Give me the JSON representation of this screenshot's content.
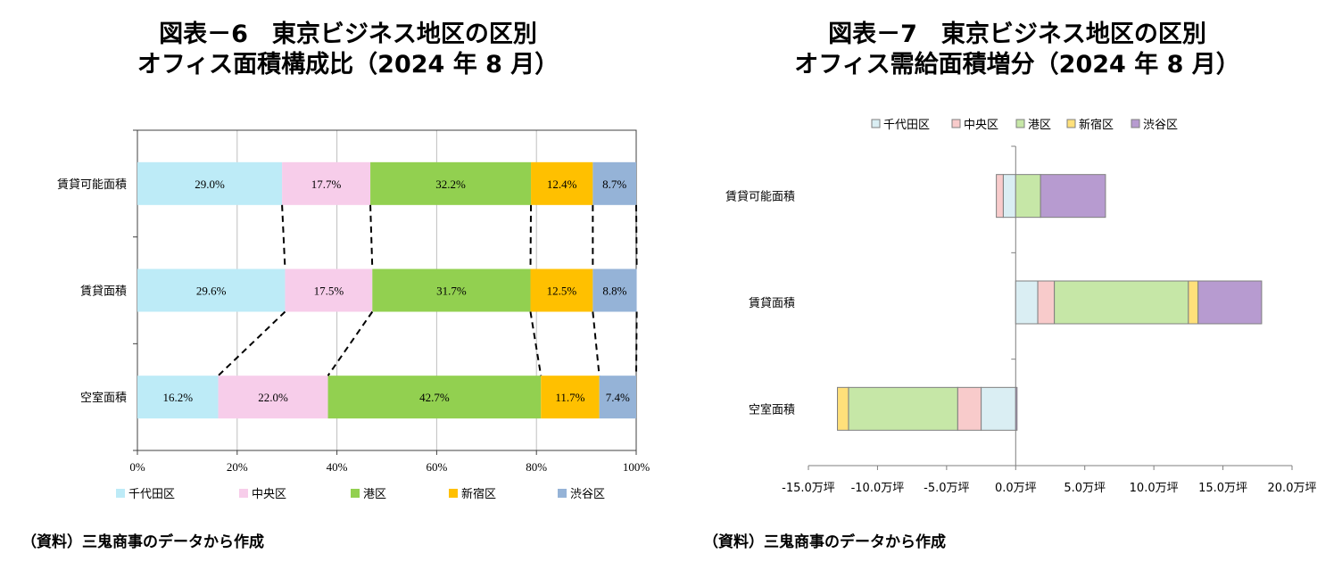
{
  "left": {
    "title_line1": "図表－6　東京ビジネス地区の区別",
    "title_line2": "オフィス面積構成比（2024 年 8 月）",
    "source": "（資料）三鬼商事のデータから作成"
  },
  "right": {
    "title_line1": "図表－7　東京ビジネス地区の区別",
    "title_line2": "オフィス需給面積増分（2024 年 8 月）",
    "source": "（資料）三鬼商事のデータから作成"
  },
  "chart_data": [
    {
      "type": "bar",
      "orientation": "horizontal",
      "stacked": "percent",
      "categories": [
        "賃貸可能面積",
        "賃貸面積",
        "空室面積"
      ],
      "series": [
        {
          "name": "千代田区",
          "values": [
            29.0,
            29.6,
            16.2
          ],
          "labels": [
            "29.0%",
            "29.6%",
            "16.2%"
          ],
          "color": "#BDEBF7"
        },
        {
          "name": "中央区",
          "values": [
            17.7,
            17.5,
            22.0
          ],
          "labels": [
            "17.7%",
            "17.5%",
            "22.0%"
          ],
          "color": "#F7CDEA"
        },
        {
          "name": "港区",
          "values": [
            32.2,
            31.7,
            42.7
          ],
          "labels": [
            "32.2%",
            "31.7%",
            "42.7%"
          ],
          "color": "#92D050"
        },
        {
          "name": "新宿区",
          "values": [
            12.4,
            12.5,
            11.7
          ],
          "labels": [
            "12.4%",
            "12.5%",
            "11.7%"
          ],
          "color": "#FFC000"
        },
        {
          "name": "渋谷区",
          "values": [
            8.7,
            8.8,
            7.4
          ],
          "labels": [
            "8.7%",
            "8.8%",
            "7.4%"
          ],
          "color": "#95B3D7"
        }
      ],
      "xlim": [
        0,
        100
      ],
      "xticks": [
        "0%",
        "20%",
        "40%",
        "60%",
        "80%",
        "100%"
      ],
      "grid": true,
      "legend": "bottom"
    },
    {
      "type": "bar",
      "orientation": "horizontal",
      "stacked": true,
      "categories": [
        "賃貸可能面積",
        "賃貸面積",
        "空室面積"
      ],
      "series": [
        {
          "name": "千代田区",
          "values": [
            -0.9,
            1.6,
            -2.5
          ],
          "color": "#DAEEF3"
        },
        {
          "name": "中央区",
          "values": [
            -0.5,
            1.2,
            -1.7
          ],
          "color": "#F8CBCB"
        },
        {
          "name": "港区",
          "values": [
            1.8,
            9.7,
            -7.9
          ],
          "color": "#C6E7A7"
        },
        {
          "name": "新宿区",
          "values": [
            0.0,
            0.7,
            -0.8
          ],
          "color": "#FFE07A"
        },
        {
          "name": "渋谷区",
          "values": [
            4.7,
            4.6,
            0.1
          ],
          "color": "#B79BD0"
        }
      ],
      "xlim": [
        -15,
        20
      ],
      "xticks": [
        "-15.0万坪",
        "-10.0万坪",
        "-5.0万坪",
        "0.0万坪",
        "5.0万坪",
        "10.0万坪",
        "15.0万坪",
        "20.0万坪"
      ],
      "grid": false,
      "legend": "top"
    }
  ]
}
